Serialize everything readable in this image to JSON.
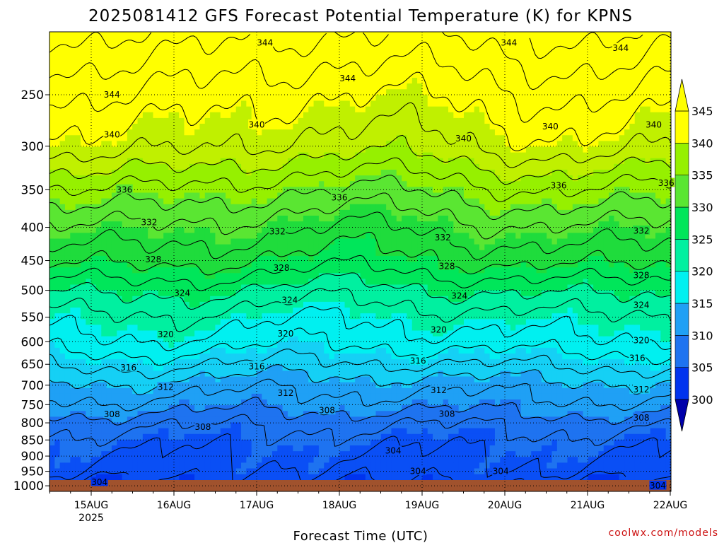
{
  "chart_data": {
    "type": "heatmap",
    "title": "2025081412 GFS Forecast Potential Temperature (K) for KPNS",
    "xlabel": "Forecast Time (UTC)",
    "ylabel": "",
    "y_scale": "log-pressure",
    "y_inverted": true,
    "ylim": [
      1020,
      200
    ],
    "y_ticks": [
      250,
      300,
      350,
      400,
      450,
      500,
      550,
      600,
      650,
      700,
      750,
      800,
      850,
      900,
      950,
      1000
    ],
    "x_ticks": [
      {
        "label": "15AUG",
        "sublabel": "2025"
      },
      {
        "label": "16AUG",
        "sublabel": ""
      },
      {
        "label": "17AUG",
        "sublabel": ""
      },
      {
        "label": "18AUG",
        "sublabel": ""
      },
      {
        "label": "19AUG",
        "sublabel": ""
      },
      {
        "label": "20AUG",
        "sublabel": ""
      },
      {
        "label": "21AUG",
        "sublabel": ""
      },
      {
        "label": "22AUG",
        "sublabel": ""
      }
    ],
    "grid": true,
    "colorbar": {
      "position": "right",
      "levels": [
        300,
        305,
        310,
        315,
        320,
        325,
        330,
        335,
        340,
        345
      ],
      "colors": [
        "#0033ee",
        "#0a4ff5",
        "#1e73f0",
        "#1fa0f5",
        "#15d0f5",
        "#00f0f0",
        "#00f0a0",
        "#00e65a",
        "#1fdc3c",
        "#5ae632",
        "#96f000",
        "#c0f000",
        "#ffff00"
      ],
      "under_color": "#0000aa",
      "over_color": "#ffff00"
    },
    "contour_interval": 2,
    "profile": [
      {
        "p": 1000,
        "theta": 303
      },
      {
        "p": 950,
        "theta": 305
      },
      {
        "p": 900,
        "theta": 306
      },
      {
        "p": 850,
        "theta": 307
      },
      {
        "p": 800,
        "theta": 308.5
      },
      {
        "p": 750,
        "theta": 311
      },
      {
        "p": 700,
        "theta": 313
      },
      {
        "p": 650,
        "theta": 316
      },
      {
        "p": 600,
        "theta": 319
      },
      {
        "p": 550,
        "theta": 321
      },
      {
        "p": 500,
        "theta": 324
      },
      {
        "p": 450,
        "theta": 328
      },
      {
        "p": 400,
        "theta": 331
      },
      {
        "p": 350,
        "theta": 335
      },
      {
        "p": 300,
        "theta": 340
      },
      {
        "p": 250,
        "theta": 343
      },
      {
        "p": 200,
        "theta": 347
      }
    ],
    "contour_labels": [
      {
        "text": "344",
        "t": 2.1,
        "p": 208
      },
      {
        "text": "344",
        "t": 5.05,
        "p": 208
      },
      {
        "text": "344",
        "t": 6.4,
        "p": 212
      },
      {
        "text": "344",
        "t": 0.25,
        "p": 250
      },
      {
        "text": "344",
        "t": 3.1,
        "p": 236
      },
      {
        "text": "340",
        "t": 0.25,
        "p": 288
      },
      {
        "text": "340",
        "t": 2.0,
        "p": 278
      },
      {
        "text": "340",
        "t": 4.5,
        "p": 292
      },
      {
        "text": "340",
        "t": 5.55,
        "p": 280
      },
      {
        "text": "340",
        "t": 6.8,
        "p": 278
      },
      {
        "text": "336",
        "t": 0.4,
        "p": 350
      },
      {
        "text": "336",
        "t": 3.0,
        "p": 360
      },
      {
        "text": "336",
        "t": 5.65,
        "p": 345
      },
      {
        "text": "336",
        "t": 6.95,
        "p": 342
      },
      {
        "text": "332",
        "t": 0.7,
        "p": 393
      },
      {
        "text": "332",
        "t": 2.25,
        "p": 406
      },
      {
        "text": "332",
        "t": 4.25,
        "p": 415
      },
      {
        "text": "332",
        "t": 6.65,
        "p": 405
      },
      {
        "text": "328",
        "t": 0.75,
        "p": 448
      },
      {
        "text": "328",
        "t": 2.3,
        "p": 462
      },
      {
        "text": "328",
        "t": 4.3,
        "p": 459
      },
      {
        "text": "328",
        "t": 6.65,
        "p": 474
      },
      {
        "text": "324",
        "t": 1.1,
        "p": 505
      },
      {
        "text": "324",
        "t": 2.4,
        "p": 518
      },
      {
        "text": "324",
        "t": 4.45,
        "p": 510
      },
      {
        "text": "324",
        "t": 6.65,
        "p": 527
      },
      {
        "text": "320",
        "t": 0.9,
        "p": 585
      },
      {
        "text": "320",
        "t": 2.35,
        "p": 583
      },
      {
        "text": "320",
        "t": 4.2,
        "p": 575
      },
      {
        "text": "320",
        "t": 6.65,
        "p": 597
      },
      {
        "text": "316",
        "t": 0.45,
        "p": 658
      },
      {
        "text": "316",
        "t": 2.0,
        "p": 655
      },
      {
        "text": "316",
        "t": 3.95,
        "p": 642
      },
      {
        "text": "316",
        "t": 6.6,
        "p": 636
      },
      {
        "text": "312",
        "t": 0.9,
        "p": 705
      },
      {
        "text": "312",
        "t": 2.35,
        "p": 720
      },
      {
        "text": "312",
        "t": 4.2,
        "p": 713
      },
      {
        "text": "312",
        "t": 6.65,
        "p": 711
      },
      {
        "text": "308",
        "t": 0.25,
        "p": 776
      },
      {
        "text": "308",
        "t": 1.35,
        "p": 812
      },
      {
        "text": "308",
        "t": 2.85,
        "p": 766
      },
      {
        "text": "308",
        "t": 4.3,
        "p": 775
      },
      {
        "text": "308",
        "t": 6.65,
        "p": 786
      },
      {
        "text": "304",
        "t": 0.1,
        "p": 987
      },
      {
        "text": "304",
        "t": 3.65,
        "p": 883
      },
      {
        "text": "304",
        "t": 3.95,
        "p": 950
      },
      {
        "text": "304",
        "t": 4.95,
        "p": 950
      },
      {
        "text": "304",
        "t": 6.85,
        "p": 1000
      }
    ]
  },
  "credit": "coolwx.com/models"
}
